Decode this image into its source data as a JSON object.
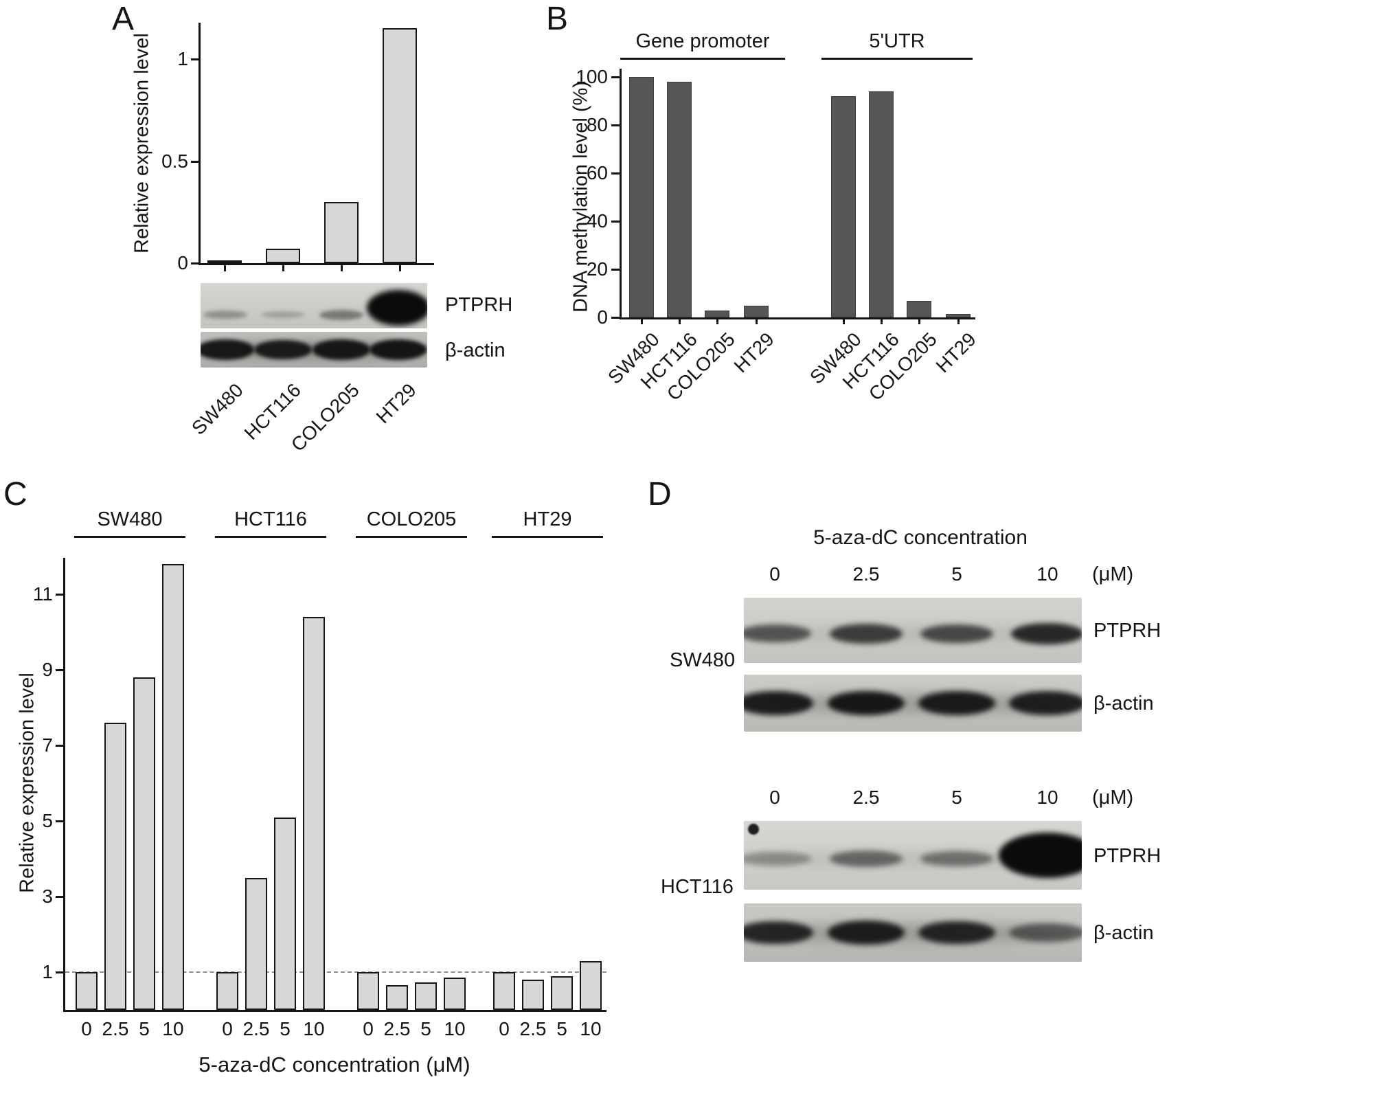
{
  "panels": {
    "a": {
      "label": "A",
      "blot": {
        "rows": [
          {
            "label": "PTPRH",
            "bands": [
              0.3,
              0.15,
              0.5,
              1
            ]
          },
          {
            "label": "β-actin",
            "bands": [
              0.92,
              0.88,
              0.92,
              0.95
            ]
          }
        ],
        "lane_labels": [
          "SW480",
          "HCT116",
          "COLO205",
          "HT29"
        ]
      }
    },
    "b": {
      "label": "B"
    },
    "c": {
      "label": "C"
    },
    "d": {
      "label": "D",
      "title": "5-aza-dC concentration",
      "unit_label": "(μM)",
      "lane_labels": [
        "0",
        "2.5",
        "5",
        "10"
      ],
      "sets": [
        {
          "cell_line": "SW480",
          "rows": [
            {
              "label": "PTPRH",
              "bands": [
                0.55,
                0.7,
                0.62,
                0.85
              ]
            },
            {
              "label": "β-actin",
              "bands": [
                0.92,
                0.95,
                0.92,
                0.9
              ]
            }
          ]
        },
        {
          "cell_line": "HCT116",
          "rows": [
            {
              "label": "PTPRH",
              "bands": [
                0.18,
                0.42,
                0.35,
                1
              ]
            },
            {
              "label": "β-actin",
              "bands": [
                0.85,
                0.9,
                0.85,
                0.45
              ]
            }
          ]
        }
      ]
    }
  },
  "chart_data": [
    {
      "id": "A",
      "type": "bar",
      "title": "",
      "ylabel": "Relative expression level",
      "categories": [
        "SW480",
        "HCT116",
        "COLO205",
        "HT29"
      ],
      "values": [
        0.01,
        0.07,
        0.3,
        1.15
      ],
      "yticks": [
        0,
        0.5,
        1
      ],
      "ylim": [
        0,
        1.18
      ],
      "bar_color": "#d8d8d8",
      "grid": false
    },
    {
      "id": "B",
      "type": "bar",
      "title": "",
      "ylabel": "DNA methylation level (%)",
      "categories": [
        "SW480",
        "HCT116",
        "COLO205",
        "HT29"
      ],
      "yticks": [
        0,
        20,
        40,
        60,
        80,
        100
      ],
      "ylim": [
        0,
        103
      ],
      "bar_color": "#565656",
      "grid": false,
      "groups": [
        {
          "label": "Gene promoter",
          "values": [
            100,
            98,
            3,
            5
          ]
        },
        {
          "label": "5'UTR",
          "values": [
            92,
            94,
            7,
            1.5
          ]
        }
      ]
    },
    {
      "id": "C",
      "type": "bar",
      "title": "",
      "ylabel": "Relative expression level",
      "xlabel": "5-aza-dC concentration (μM)",
      "x_tick_labels": [
        "0",
        "2.5",
        "5",
        "10"
      ],
      "yticks": [
        1,
        3,
        5,
        7,
        9,
        11
      ],
      "ylim": [
        0,
        12
      ],
      "reference_line_y": 1,
      "bar_color": "#d8d8d8",
      "grid": false,
      "groups": [
        {
          "label": "SW480",
          "values": [
            1,
            7.6,
            8.8,
            11.8
          ]
        },
        {
          "label": "HCT116",
          "values": [
            1,
            3.5,
            5.1,
            10.4
          ]
        },
        {
          "label": "COLO205",
          "values": [
            1,
            0.65,
            0.72,
            0.85
          ]
        },
        {
          "label": "HT29",
          "values": [
            1,
            0.8,
            0.9,
            1.3
          ]
        }
      ]
    }
  ]
}
